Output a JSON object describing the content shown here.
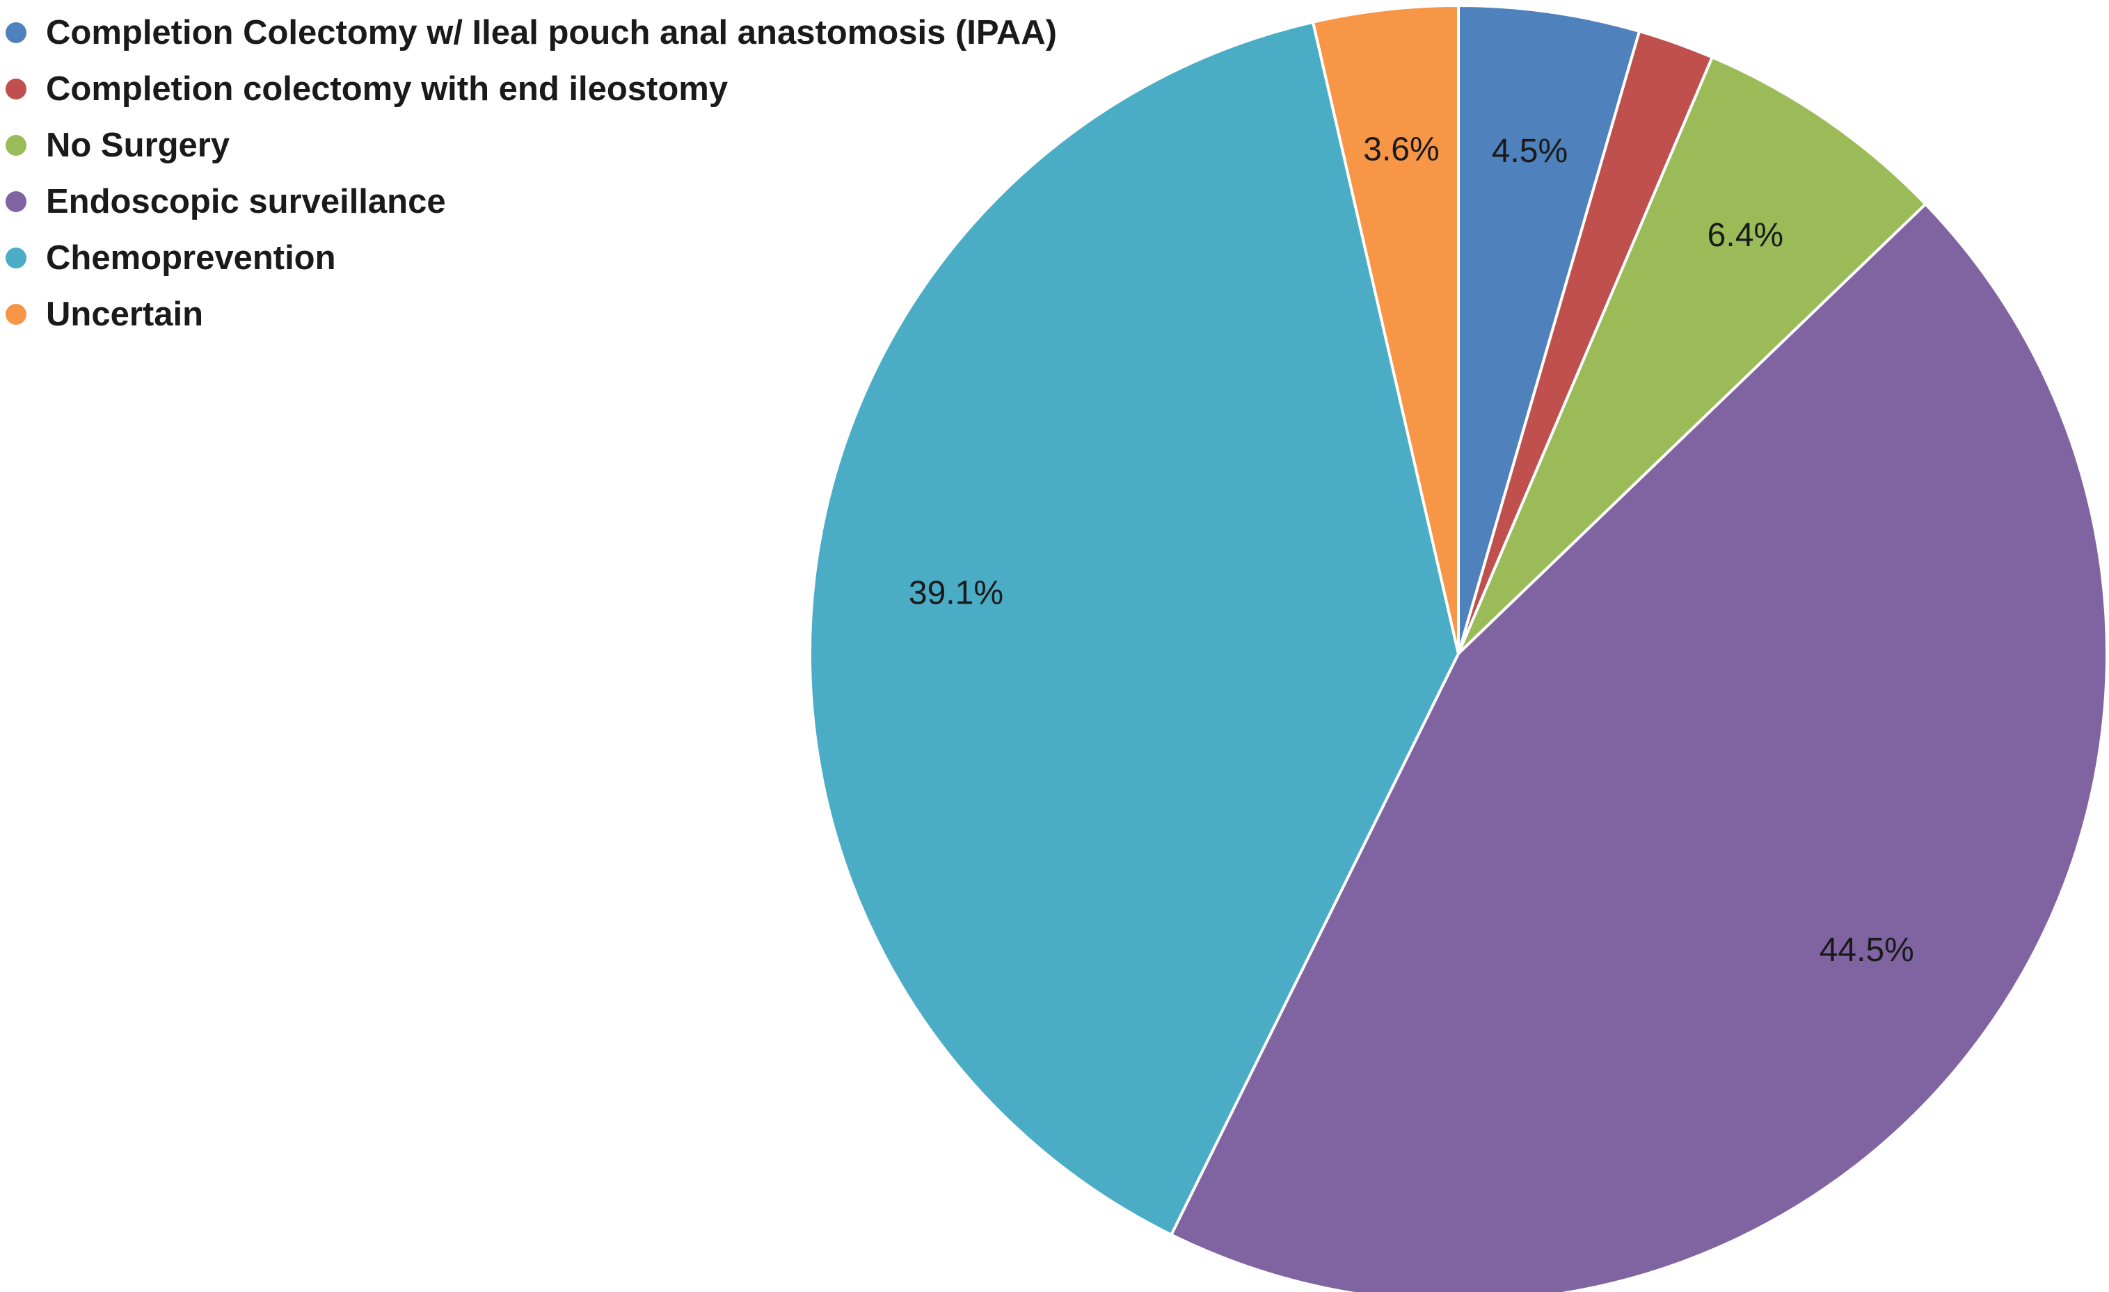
{
  "chart_data": {
    "type": "pie",
    "title": "",
    "legend_position": "top-left",
    "slices": [
      {
        "label": "Completion Colectomy w/ Ileal pouch anal anastomosis (IPAA)",
        "value": 4.5,
        "value_label": "4.5%",
        "color": "#4f81bd"
      },
      {
        "label": "Completion colectomy with end ileostomy",
        "value": 1.9,
        "value_label": "",
        "color": "#c0504d"
      },
      {
        "label": "No Surgery",
        "value": 6.4,
        "value_label": "6.4%",
        "color": "#9bbb59"
      },
      {
        "label": "Endoscopic surveillance",
        "value": 44.5,
        "value_label": "44.5%",
        "color": "#8064a2"
      },
      {
        "label": "Chemoprevention",
        "value": 39.1,
        "value_label": "39.1%",
        "color": "#4bacc6"
      },
      {
        "label": "Uncertain",
        "value": 3.6,
        "value_label": "3.6%",
        "color": "#f79646"
      }
    ]
  }
}
